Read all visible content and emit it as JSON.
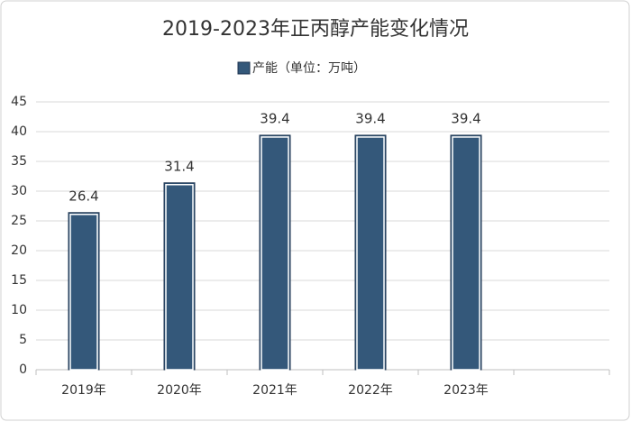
{
  "chart_data": {
    "type": "bar",
    "title": "2019-2023年正丙醇产能变化情况",
    "series": [
      {
        "name": "产能（单位：万吨）",
        "color": "#34587a",
        "values": [
          26.4,
          31.4,
          39.4,
          39.4,
          39.4,
          null
        ]
      }
    ],
    "categories": [
      "2019年",
      "2020年",
      "2021年",
      "2022年",
      "2023年",
      null
    ],
    "ylim": [
      0,
      45
    ],
    "yticks": [
      0,
      5,
      10,
      15,
      20,
      25,
      30,
      35,
      40,
      45
    ],
    "grid": true
  }
}
